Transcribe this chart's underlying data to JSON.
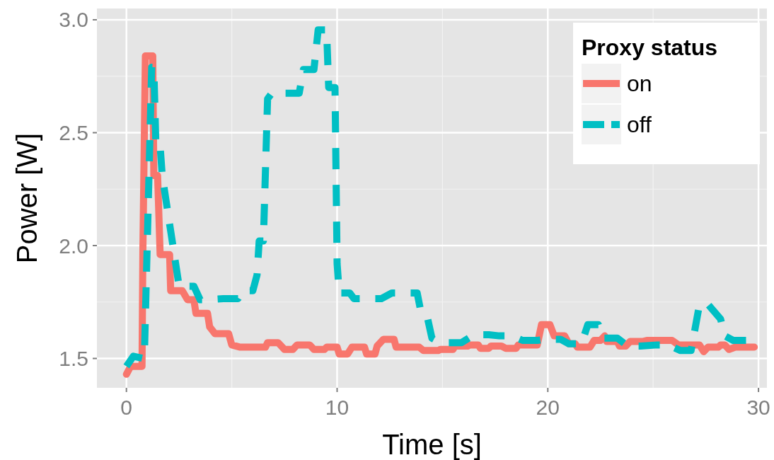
{
  "chart_data": {
    "type": "line",
    "xlabel": "Time [s]",
    "ylabel": "Power [W]",
    "legend_title": "Proxy status",
    "xlim": [
      -1.4,
      30.4
    ],
    "ylim": [
      1.37,
      3.05
    ],
    "xticks": [
      0,
      10,
      20,
      30
    ],
    "yticks": [
      {
        "value": 1.5,
        "label": "1.5"
      },
      {
        "value": 2,
        "label": "2.0"
      },
      {
        "value": 2.5,
        "label": "2.5"
      },
      {
        "value": 3,
        "label": "3.0"
      }
    ],
    "grid": true,
    "legend": "top right",
    "series": [
      {
        "name": "on",
        "color": "#f8766d",
        "line_style": "solid",
        "x": [
          0,
          0.2,
          0.74,
          0.78,
          0.9,
          1.25,
          1.3,
          1.48,
          1.6,
          1.7,
          2.05,
          2.1,
          2.65,
          2.9,
          3.2,
          3.3,
          3.85,
          3.95,
          4.2,
          4.85,
          5.0,
          5.4,
          6.6,
          6.7,
          7.2,
          7.5,
          7.9,
          8.1,
          8.7,
          8.9,
          9.4,
          9.5,
          10.0,
          10.1,
          10.5,
          10.7,
          11.3,
          11.4,
          11.8,
          11.9,
          12.2,
          12.7,
          12.8,
          13.9,
          14.1,
          14.8,
          14.9,
          15.5,
          15.6,
          16.2,
          16.3,
          16.7,
          16.8,
          17.2,
          17.3,
          17.8,
          18.0,
          18.5,
          18.6,
          19.5,
          19.7,
          20.1,
          20.3,
          20.8,
          21.0,
          21.3,
          21.4,
          22.0,
          22.2,
          22.5,
          22.7,
          22.8,
          23.3,
          23.4,
          23.7,
          23.9,
          24.5,
          24.7,
          25.9,
          26.2,
          27.2,
          27.4,
          27.6,
          28.1,
          28.2,
          28.4,
          28.6,
          28.9,
          29.8
        ],
        "values": [
          1.43,
          1.465,
          1.465,
          1.97,
          2.84,
          2.84,
          2.31,
          2.31,
          1.96,
          1.96,
          1.96,
          1.8,
          1.8,
          1.76,
          1.76,
          1.7,
          1.7,
          1.64,
          1.61,
          1.61,
          1.56,
          1.55,
          1.55,
          1.57,
          1.57,
          1.54,
          1.54,
          1.56,
          1.56,
          1.54,
          1.54,
          1.55,
          1.55,
          1.52,
          1.52,
          1.55,
          1.55,
          1.52,
          1.52,
          1.555,
          1.585,
          1.585,
          1.55,
          1.55,
          1.535,
          1.535,
          1.54,
          1.54,
          1.555,
          1.555,
          1.56,
          1.56,
          1.545,
          1.545,
          1.555,
          1.555,
          1.545,
          1.545,
          1.56,
          1.56,
          1.65,
          1.65,
          1.6,
          1.6,
          1.565,
          1.565,
          1.55,
          1.55,
          1.58,
          1.58,
          1.6,
          1.575,
          1.575,
          1.555,
          1.555,
          1.575,
          1.575,
          1.58,
          1.58,
          1.56,
          1.56,
          1.53,
          1.55,
          1.55,
          1.56,
          1.56,
          1.54,
          1.55,
          1.55
        ]
      },
      {
        "name": "off",
        "color": "#00bfc4",
        "line_style": "dashed",
        "x": [
          0,
          0.33,
          0.8,
          0.85,
          1.2,
          1.3,
          1.4,
          1.6,
          1.7,
          2.5,
          3.2,
          3.5,
          3.7,
          4.6,
          5.3,
          5.5,
          6.0,
          6.2,
          6.3,
          6.5,
          6.7,
          6.9,
          8.2,
          8.4,
          8.9,
          9.1,
          9.5,
          9.6,
          9.9,
          10.0,
          10.1,
          10.6,
          10.8,
          12.1,
          12.6,
          13.8,
          14.0,
          14.3,
          14.5,
          14.8,
          15.3,
          15.9,
          16.5,
          17.2,
          17.7,
          18.3,
          18.8,
          19.5,
          19.9,
          20.6,
          21.0,
          21.6,
          21.9,
          22.4,
          22.6,
          23.3,
          23.8,
          24.4,
          25.2,
          25.7,
          26.3,
          26.8,
          27.2,
          27.6,
          28.2,
          28.4,
          28.8,
          29.5
        ],
        "values": [
          1.465,
          1.51,
          1.5,
          1.5,
          2.79,
          2.79,
          2.44,
          2.44,
          2.31,
          1.82,
          1.82,
          1.76,
          1.76,
          1.765,
          1.765,
          1.8,
          1.8,
          1.87,
          2.02,
          2.02,
          2.65,
          2.675,
          2.675,
          2.78,
          2.78,
          2.955,
          2.955,
          2.7,
          2.7,
          1.92,
          1.79,
          1.79,
          1.765,
          1.765,
          1.79,
          1.79,
          1.695,
          1.675,
          1.59,
          1.575,
          1.57,
          1.57,
          1.605,
          1.605,
          1.6,
          1.6,
          1.58,
          1.58,
          1.585,
          1.585,
          1.565,
          1.565,
          1.65,
          1.65,
          1.59,
          1.59,
          1.555,
          1.555,
          1.56,
          1.56,
          1.535,
          1.535,
          1.74,
          1.74,
          1.675,
          1.6,
          1.58,
          1.58
        ]
      }
    ]
  }
}
